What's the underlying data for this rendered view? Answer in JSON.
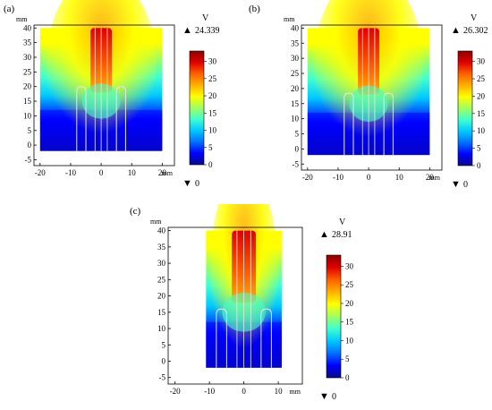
{
  "colors": {
    "scale": [
      "#0a0a8c",
      "#0000ff",
      "#0070ff",
      "#00c8ff",
      "#40ffd0",
      "#a0ff60",
      "#ffff00",
      "#ffb000",
      "#ff6000",
      "#e00000",
      "#8c0000"
    ],
    "electrode_outline": "#e8e8e8"
  },
  "panels": [
    {
      "id": "a",
      "label": "(a)",
      "y_unit": "mm",
      "x_unit": "mm",
      "y_ticks": [
        "40",
        "35",
        "30",
        "25",
        "20",
        "15",
        "10",
        "5",
        "0",
        "-5"
      ],
      "x_ticks": [
        "-20",
        "-10",
        "0",
        "10",
        "20"
      ],
      "colorbar": {
        "unit": "V",
        "max_marker": "▲",
        "max_value": "24.339",
        "min_marker": "▼",
        "min_value": "0",
        "ticks": [
          "30",
          "25",
          "20",
          "15",
          "10",
          "5",
          "0"
        ]
      },
      "max_voltage": 24.339,
      "electrodes": "two side U-shaped electrodes, central electrode to y=19"
    },
    {
      "id": "b",
      "label": "(b)",
      "y_unit": "mm",
      "x_unit": "mm",
      "y_ticks": [
        "40",
        "35",
        "30",
        "25",
        "20",
        "15",
        "10",
        "5",
        "0",
        "-5"
      ],
      "x_ticks": [
        "-20",
        "-10",
        "0",
        "10",
        "20"
      ],
      "colorbar": {
        "unit": "V",
        "max_marker": "▲",
        "max_value": "26.302",
        "min_marker": "▼",
        "min_value": "0",
        "ticks": [
          "30",
          "25",
          "20",
          "15",
          "10",
          "5",
          "0"
        ]
      },
      "max_voltage": 26.302
    },
    {
      "id": "c",
      "label": "(c)",
      "y_unit": "mm",
      "x_unit": "mm",
      "y_ticks": [
        "40",
        "35",
        "30",
        "25",
        "20",
        "15",
        "10",
        "5",
        "0",
        "-5"
      ],
      "x_ticks": [
        "-20",
        "-10",
        "0",
        "10"
      ],
      "colorbar": {
        "unit": "V",
        "max_marker": "▲",
        "max_value": "28.91",
        "min_marker": "▼",
        "min_value": "0",
        "ticks": [
          "30",
          "25",
          "20",
          "15",
          "10",
          "5",
          "0"
        ]
      },
      "max_voltage": 28.91
    }
  ]
}
